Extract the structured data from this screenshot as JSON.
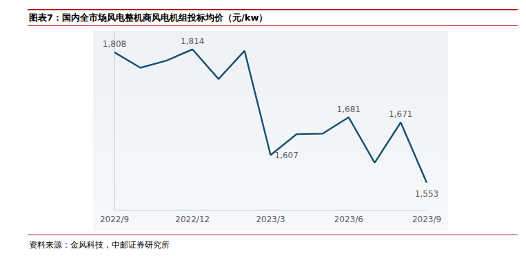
{
  "chart_data": {
    "type": "line",
    "title": "图表7：国内全市场风电整机商风电机组投标均价（元/kw）",
    "source": "资料来源：金风科技，中邮证券研究所",
    "categories": [
      "2022/9",
      null,
      null,
      "2022/12",
      null,
      null,
      "2023/3",
      null,
      null,
      "2023/6",
      null,
      null,
      "2023/9"
    ],
    "values": [
      1808,
      1778,
      1792,
      1814,
      1756,
      1811,
      1607,
      1648,
      1649,
      1681,
      1592,
      1671,
      1553
    ],
    "value_labels": [
      "1,808",
      null,
      null,
      "1,814",
      null,
      null,
      "1,607",
      null,
      null,
      "1,681",
      null,
      "1,671",
      "1,553"
    ],
    "color": "#1b4f72",
    "ylim": [
      1500,
      1850
    ],
    "grid": false,
    "tick_labels": "x"
  }
}
